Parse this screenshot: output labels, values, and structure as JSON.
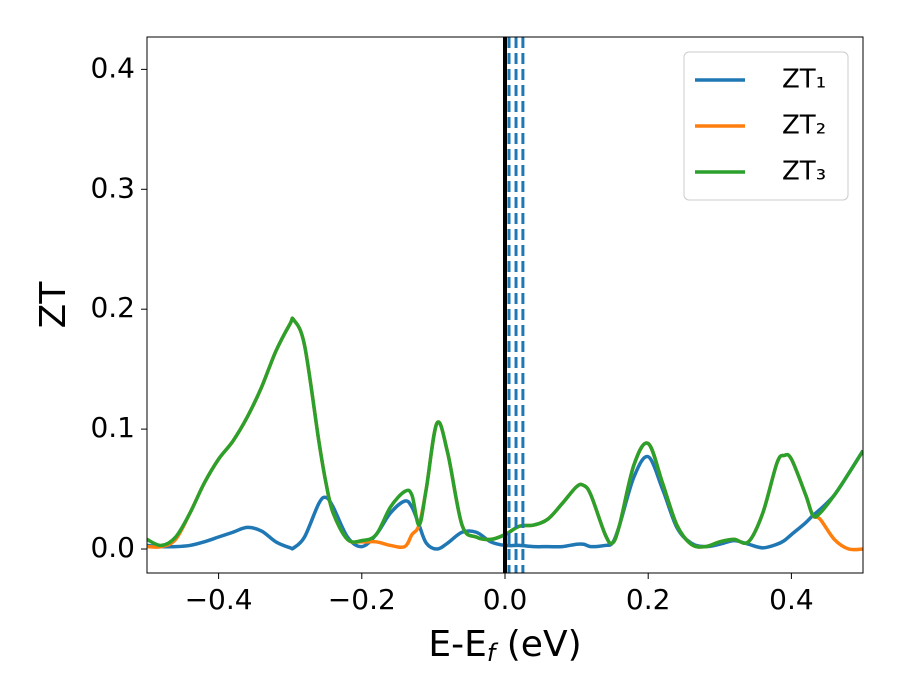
{
  "chart_data": {
    "type": "line",
    "x_label": [
      "E-E",
      "f",
      " (eV)"
    ],
    "y_label": "ZT",
    "xlim": [
      -0.5,
      0.5
    ],
    "ylim": [
      -0.02,
      0.427
    ],
    "xticks": [
      {
        "value": -0.4,
        "label": "−0.4"
      },
      {
        "value": -0.2,
        "label": "−0.2"
      },
      {
        "value": 0,
        "label": "0.0"
      },
      0.2,
      0.4
    ],
    "yticks": [
      {
        "value": 0,
        "label": "0.0"
      },
      0.1,
      0.2,
      0.3,
      0.4
    ],
    "grid": false,
    "legend": "upper right",
    "x": [
      -0.5,
      -0.48,
      -0.46,
      -0.44,
      -0.42,
      -0.4,
      -0.38,
      -0.36,
      -0.34,
      -0.32,
      -0.3,
      -0.295,
      -0.28,
      -0.26,
      -0.25,
      -0.24,
      -0.22,
      -0.2,
      -0.18,
      -0.16,
      -0.14,
      -0.13,
      -0.12,
      -0.11,
      -0.095,
      -0.08,
      -0.06,
      -0.04,
      -0.02,
      0.0,
      0.02,
      0.04,
      0.06,
      0.08,
      0.1,
      0.11,
      0.12,
      0.14,
      0.15,
      0.16,
      0.18,
      0.2,
      0.22,
      0.24,
      0.26,
      0.28,
      0.3,
      0.32,
      0.34,
      0.36,
      0.38,
      0.39,
      0.4,
      0.42,
      0.43,
      0.44,
      0.46,
      0.48,
      0.5
    ],
    "series": [
      {
        "name": "ZT₁",
        "color": "#1f77b4",
        "values": [
          0.003,
          0.002,
          0.002,
          0.003,
          0.006,
          0.01,
          0.014,
          0.018,
          0.015,
          0.006,
          0.001,
          0.001,
          0.01,
          0.038,
          0.043,
          0.035,
          0.01,
          0.002,
          0.012,
          0.03,
          0.04,
          0.035,
          0.02,
          0.005,
          0.0,
          0.005,
          0.014,
          0.014,
          0.006,
          0.003,
          0.003,
          0.002,
          0.002,
          0.002,
          0.004,
          0.004,
          0.002,
          0.003,
          0.005,
          0.02,
          0.06,
          0.077,
          0.05,
          0.018,
          0.005,
          0.002,
          0.004,
          0.007,
          0.004,
          0.001,
          0.004,
          0.007,
          0.012,
          0.022,
          0.028,
          0.033,
          0.045,
          0.063,
          0.082
        ]
      },
      {
        "name": "ZT₂",
        "color": "#ff7f0e",
        "values": [
          0.002,
          0.002,
          0.008,
          0.03,
          0.055,
          0.075,
          0.09,
          0.11,
          0.135,
          0.165,
          0.188,
          0.191,
          0.17,
          0.09,
          0.055,
          0.03,
          0.008,
          0.006,
          0.006,
          0.003,
          0.002,
          0.012,
          0.02,
          0.05,
          0.105,
          0.08,
          0.02,
          0.01,
          0.008,
          0.012,
          0.019,
          0.02,
          0.025,
          0.038,
          0.052,
          0.053,
          0.045,
          0.012,
          0.005,
          0.02,
          0.07,
          0.088,
          0.055,
          0.02,
          0.004,
          0.002,
          0.006,
          0.008,
          0.006,
          0.03,
          0.072,
          0.078,
          0.075,
          0.045,
          0.028,
          0.025,
          0.008,
          0.0,
          0.0
        ]
      },
      {
        "name": "ZT₃",
        "color": "#2ca02c",
        "values": [
          0.008,
          0.003,
          0.01,
          0.03,
          0.055,
          0.075,
          0.09,
          0.11,
          0.135,
          0.165,
          0.188,
          0.191,
          0.17,
          0.09,
          0.055,
          0.03,
          0.008,
          0.007,
          0.012,
          0.035,
          0.048,
          0.045,
          0.02,
          0.05,
          0.105,
          0.08,
          0.02,
          0.01,
          0.008,
          0.012,
          0.019,
          0.02,
          0.025,
          0.038,
          0.052,
          0.053,
          0.045,
          0.012,
          0.005,
          0.02,
          0.07,
          0.088,
          0.055,
          0.02,
          0.004,
          0.002,
          0.006,
          0.008,
          0.006,
          0.03,
          0.072,
          0.078,
          0.075,
          0.045,
          0.028,
          0.03,
          0.045,
          0.063,
          0.082
        ]
      }
    ],
    "vlines": [
      {
        "x": 0,
        "color": "#000000",
        "style": "solid"
      },
      {
        "x": 0.0056,
        "color": "#1f77b4",
        "style": "dashed"
      },
      {
        "x": 0.0154,
        "color": "#1f77b4",
        "style": "dashed"
      },
      {
        "x": 0.025,
        "color": "#1f77b4",
        "style": "dashed"
      }
    ]
  }
}
